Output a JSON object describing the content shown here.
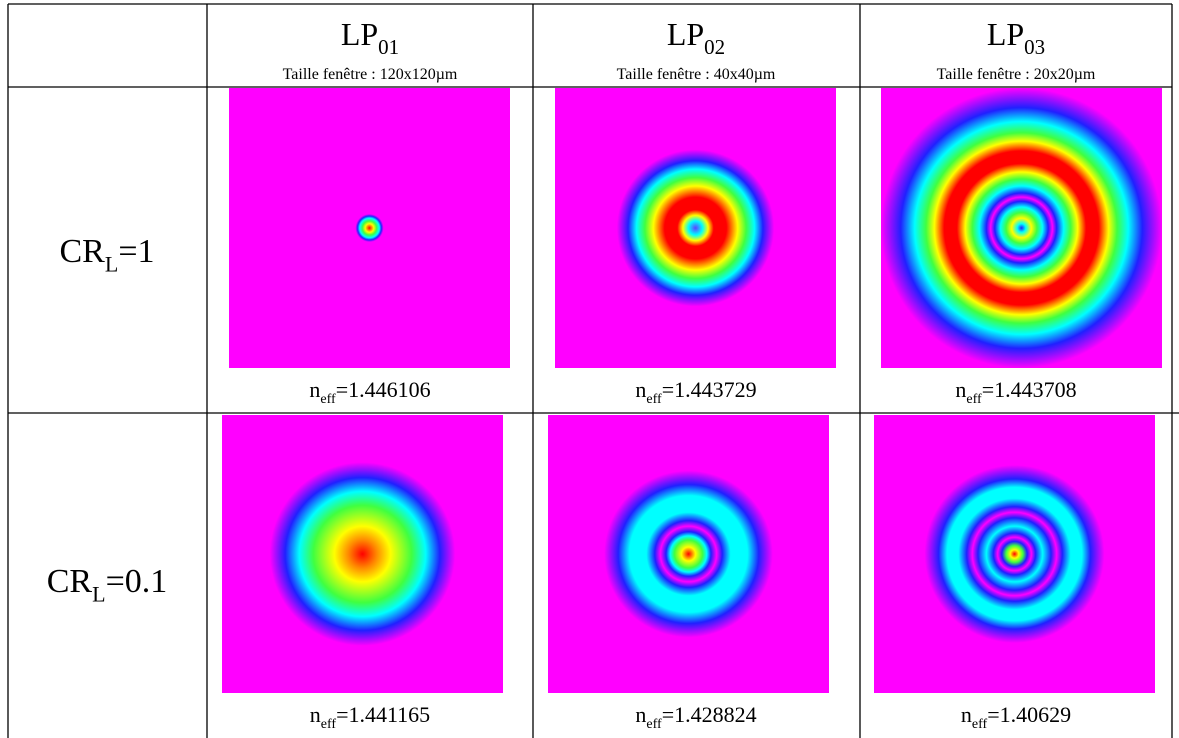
{
  "table": {
    "header": [
      {
        "base": "LP",
        "sub": "01",
        "note": "Taille fenêtre : 120x120µm"
      },
      {
        "base": "LP",
        "sub": "02",
        "note": "Taille fenêtre : 40x40µm"
      },
      {
        "base": "LP",
        "sub": "03",
        "note": "Taille fenêtre : 20x20µm"
      }
    ],
    "rows": [
      {
        "label": {
          "base": "CR",
          "sub": "L",
          "rest": "=1"
        },
        "cells": [
          {
            "base": "n",
            "sub": "eff",
            "rest": "=1.446106"
          },
          {
            "base": "n",
            "sub": "eff",
            "rest": "=1.443729"
          },
          {
            "base": "n",
            "sub": "eff",
            "rest": "=1.443708"
          }
        ]
      },
      {
        "label": {
          "base": "CR",
          "sub": "L",
          "rest": "=0.1"
        },
        "cells": [
          {
            "base": "n",
            "sub": "eff",
            "rest": "=1.441165"
          },
          {
            "base": "n",
            "sub": "eff",
            "rest": "=1.428824"
          },
          {
            "base": "n",
            "sub": "eff",
            "rest": "=1.40629"
          }
        ]
      }
    ]
  }
}
